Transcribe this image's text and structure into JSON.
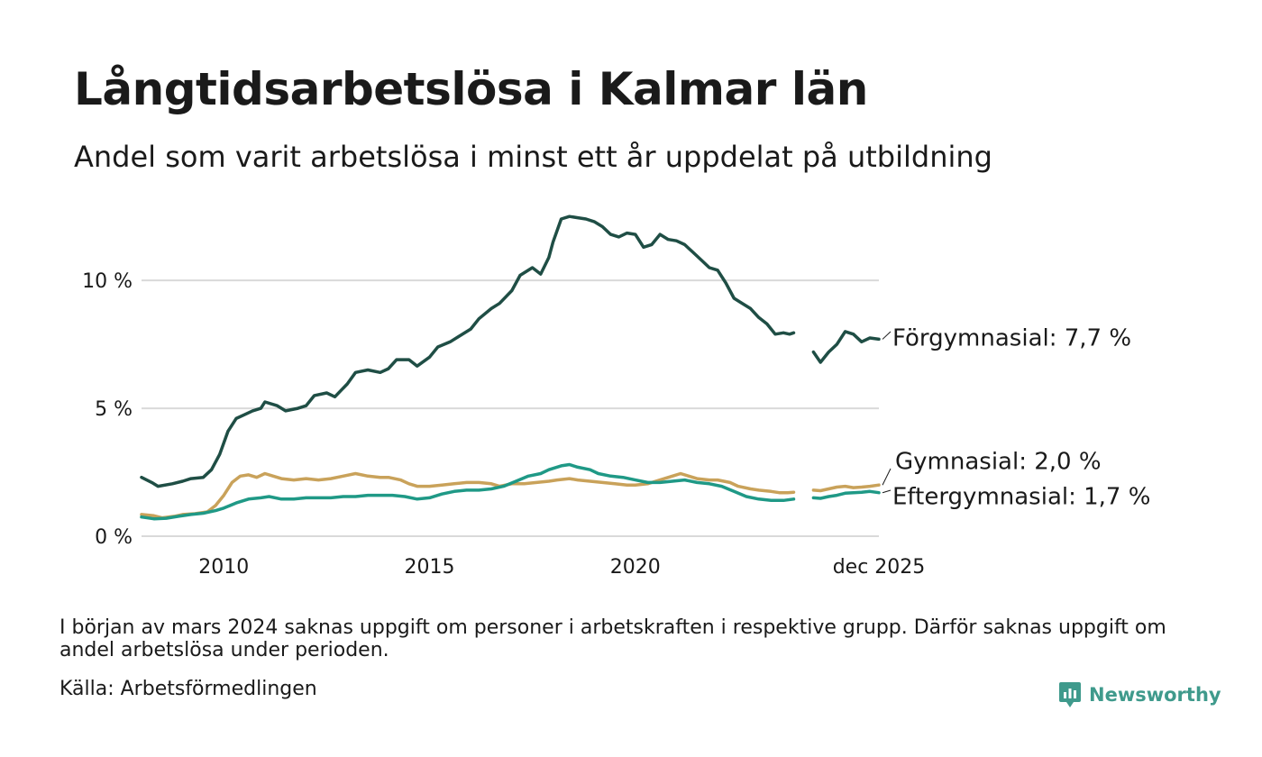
{
  "title": "Långtidsarbetslösa i Kalmar län",
  "subtitle": "Andel som varit arbetslösa i minst ett år uppdelat på utbildning",
  "note": "I början av mars 2024 saknas uppgift om personer i arbetskraften i respektive grupp. Därför saknas uppgift om andel arbetslösa under perioden.",
  "source": "Källa: Arbetsförmedlingen",
  "brand": {
    "name": "Newsworthy",
    "icon": "newsworthy-logo-icon"
  },
  "colors": {
    "forgymnasial": "#1f4e45",
    "gymnasial": "#c9a25a",
    "eftergymnasial": "#1f9986",
    "grid": "#d9d9d9"
  },
  "chart_data": {
    "type": "line",
    "xlim": [
      2008.0,
      2025.92
    ],
    "ylim": [
      0,
      13
    ],
    "grid": true,
    "xticks": [
      {
        "value": 2010,
        "label": "2010"
      },
      {
        "value": 2015,
        "label": "2015"
      },
      {
        "value": 2020,
        "label": "2020"
      },
      {
        "value": 2025.92,
        "label": "dec 2025"
      }
    ],
    "yticks": [
      {
        "value": 0,
        "label": "0 %"
      },
      {
        "value": 5,
        "label": "5 %"
      },
      {
        "value": 10,
        "label": "10 %"
      }
    ],
    "gap": [
      2024.0,
      2024.33
    ],
    "series": [
      {
        "name": "Förgymnasial",
        "label": "Förgymnasial: 7,7 %",
        "last_value": 7.7,
        "color_key": "forgymnasial",
        "points": [
          [
            2008.0,
            2.3
          ],
          [
            2008.25,
            2.1
          ],
          [
            2008.4,
            1.95
          ],
          [
            2008.75,
            2.05
          ],
          [
            2009.0,
            2.15
          ],
          [
            2009.2,
            2.25
          ],
          [
            2009.5,
            2.3
          ],
          [
            2009.7,
            2.6
          ],
          [
            2009.9,
            3.2
          ],
          [
            2010.1,
            4.1
          ],
          [
            2010.3,
            4.6
          ],
          [
            2010.5,
            4.75
          ],
          [
            2010.7,
            4.9
          ],
          [
            2010.9,
            5.0
          ],
          [
            2011.0,
            5.25
          ],
          [
            2011.3,
            5.1
          ],
          [
            2011.5,
            4.9
          ],
          [
            2011.8,
            5.0
          ],
          [
            2012.0,
            5.1
          ],
          [
            2012.2,
            5.5
          ],
          [
            2012.5,
            5.6
          ],
          [
            2012.7,
            5.45
          ],
          [
            2013.0,
            5.95
          ],
          [
            2013.2,
            6.4
          ],
          [
            2013.5,
            6.5
          ],
          [
            2013.8,
            6.4
          ],
          [
            2014.0,
            6.55
          ],
          [
            2014.2,
            6.9
          ],
          [
            2014.5,
            6.9
          ],
          [
            2014.7,
            6.65
          ],
          [
            2015.0,
            7.0
          ],
          [
            2015.2,
            7.4
          ],
          [
            2015.5,
            7.6
          ],
          [
            2015.7,
            7.8
          ],
          [
            2016.0,
            8.1
          ],
          [
            2016.2,
            8.5
          ],
          [
            2016.5,
            8.9
          ],
          [
            2016.7,
            9.1
          ],
          [
            2017.0,
            9.6
          ],
          [
            2017.2,
            10.2
          ],
          [
            2017.5,
            10.5
          ],
          [
            2017.7,
            10.25
          ],
          [
            2017.9,
            10.9
          ],
          [
            2018.0,
            11.5
          ],
          [
            2018.2,
            12.4
          ],
          [
            2018.4,
            12.5
          ],
          [
            2018.6,
            12.45
          ],
          [
            2018.8,
            12.4
          ],
          [
            2019.0,
            12.3
          ],
          [
            2019.2,
            12.1
          ],
          [
            2019.4,
            11.8
          ],
          [
            2019.6,
            11.7
          ],
          [
            2019.8,
            11.85
          ],
          [
            2020.0,
            11.8
          ],
          [
            2020.2,
            11.3
          ],
          [
            2020.4,
            11.4
          ],
          [
            2020.6,
            11.8
          ],
          [
            2020.8,
            11.6
          ],
          [
            2021.0,
            11.55
          ],
          [
            2021.2,
            11.4
          ],
          [
            2021.4,
            11.1
          ],
          [
            2021.6,
            10.8
          ],
          [
            2021.8,
            10.5
          ],
          [
            2022.0,
            10.4
          ],
          [
            2022.2,
            9.9
          ],
          [
            2022.4,
            9.3
          ],
          [
            2022.6,
            9.1
          ],
          [
            2022.8,
            8.9
          ],
          [
            2023.0,
            8.55
          ],
          [
            2023.2,
            8.3
          ],
          [
            2023.4,
            7.9
          ],
          [
            2023.6,
            7.95
          ],
          [
            2023.75,
            7.9
          ],
          [
            2023.85,
            7.95
          ],
          [
            2024.33,
            7.2
          ],
          [
            2024.5,
            6.8
          ],
          [
            2024.7,
            7.2
          ],
          [
            2024.9,
            7.5
          ],
          [
            2025.1,
            8.0
          ],
          [
            2025.3,
            7.9
          ],
          [
            2025.5,
            7.6
          ],
          [
            2025.7,
            7.75
          ],
          [
            2025.92,
            7.7
          ]
        ]
      },
      {
        "name": "Gymnasial",
        "label": "Gymnasial: 2,0 %",
        "last_value": 2.0,
        "color_key": "gymnasial",
        "points": [
          [
            2008.0,
            0.85
          ],
          [
            2008.3,
            0.8
          ],
          [
            2008.5,
            0.72
          ],
          [
            2008.8,
            0.78
          ],
          [
            2009.0,
            0.85
          ],
          [
            2009.3,
            0.88
          ],
          [
            2009.6,
            0.95
          ],
          [
            2009.8,
            1.2
          ],
          [
            2010.0,
            1.6
          ],
          [
            2010.2,
            2.1
          ],
          [
            2010.4,
            2.35
          ],
          [
            2010.6,
            2.4
          ],
          [
            2010.8,
            2.3
          ],
          [
            2011.0,
            2.45
          ],
          [
            2011.2,
            2.35
          ],
          [
            2011.4,
            2.25
          ],
          [
            2011.7,
            2.2
          ],
          [
            2012.0,
            2.25
          ],
          [
            2012.3,
            2.2
          ],
          [
            2012.6,
            2.25
          ],
          [
            2012.9,
            2.35
          ],
          [
            2013.2,
            2.45
          ],
          [
            2013.5,
            2.35
          ],
          [
            2013.8,
            2.3
          ],
          [
            2014.0,
            2.3
          ],
          [
            2014.3,
            2.2
          ],
          [
            2014.5,
            2.05
          ],
          [
            2014.7,
            1.95
          ],
          [
            2015.0,
            1.95
          ],
          [
            2015.3,
            2.0
          ],
          [
            2015.6,
            2.05
          ],
          [
            2015.9,
            2.1
          ],
          [
            2016.2,
            2.1
          ],
          [
            2016.5,
            2.05
          ],
          [
            2016.7,
            1.95
          ],
          [
            2017.0,
            2.05
          ],
          [
            2017.3,
            2.05
          ],
          [
            2017.6,
            2.1
          ],
          [
            2017.9,
            2.15
          ],
          [
            2018.1,
            2.2
          ],
          [
            2018.4,
            2.25
          ],
          [
            2018.6,
            2.2
          ],
          [
            2018.9,
            2.15
          ],
          [
            2019.2,
            2.1
          ],
          [
            2019.5,
            2.05
          ],
          [
            2019.8,
            2.0
          ],
          [
            2020.0,
            2.0
          ],
          [
            2020.3,
            2.05
          ],
          [
            2020.6,
            2.2
          ],
          [
            2020.9,
            2.35
          ],
          [
            2021.1,
            2.45
          ],
          [
            2021.3,
            2.35
          ],
          [
            2021.5,
            2.25
          ],
          [
            2021.8,
            2.2
          ],
          [
            2022.0,
            2.2
          ],
          [
            2022.3,
            2.1
          ],
          [
            2022.5,
            1.95
          ],
          [
            2022.8,
            1.85
          ],
          [
            2023.0,
            1.8
          ],
          [
            2023.3,
            1.75
          ],
          [
            2023.5,
            1.7
          ],
          [
            2023.7,
            1.7
          ],
          [
            2023.85,
            1.72
          ],
          [
            2024.33,
            1.8
          ],
          [
            2024.5,
            1.78
          ],
          [
            2024.7,
            1.85
          ],
          [
            2024.9,
            1.92
          ],
          [
            2025.1,
            1.95
          ],
          [
            2025.3,
            1.9
          ],
          [
            2025.5,
            1.92
          ],
          [
            2025.7,
            1.95
          ],
          [
            2025.92,
            2.0
          ]
        ]
      },
      {
        "name": "Eftergymnasial",
        "label": "Eftergymnasial: 1,7 %",
        "last_value": 1.7,
        "color_key": "eftergymnasial",
        "points": [
          [
            2008.0,
            0.75
          ],
          [
            2008.3,
            0.68
          ],
          [
            2008.6,
            0.7
          ],
          [
            2008.9,
            0.78
          ],
          [
            2009.2,
            0.85
          ],
          [
            2009.5,
            0.9
          ],
          [
            2009.8,
            1.0
          ],
          [
            2010.0,
            1.1
          ],
          [
            2010.3,
            1.3
          ],
          [
            2010.6,
            1.45
          ],
          [
            2010.9,
            1.5
          ],
          [
            2011.1,
            1.55
          ],
          [
            2011.4,
            1.45
          ],
          [
            2011.7,
            1.45
          ],
          [
            2012.0,
            1.5
          ],
          [
            2012.3,
            1.5
          ],
          [
            2012.6,
            1.5
          ],
          [
            2012.9,
            1.55
          ],
          [
            2013.2,
            1.55
          ],
          [
            2013.5,
            1.6
          ],
          [
            2013.8,
            1.6
          ],
          [
            2014.1,
            1.6
          ],
          [
            2014.4,
            1.55
          ],
          [
            2014.7,
            1.45
          ],
          [
            2015.0,
            1.5
          ],
          [
            2015.3,
            1.65
          ],
          [
            2015.6,
            1.75
          ],
          [
            2015.9,
            1.8
          ],
          [
            2016.2,
            1.8
          ],
          [
            2016.5,
            1.85
          ],
          [
            2016.8,
            1.95
          ],
          [
            2017.1,
            2.15
          ],
          [
            2017.4,
            2.35
          ],
          [
            2017.7,
            2.45
          ],
          [
            2017.9,
            2.6
          ],
          [
            2018.2,
            2.75
          ],
          [
            2018.4,
            2.8
          ],
          [
            2018.6,
            2.7
          ],
          [
            2018.9,
            2.6
          ],
          [
            2019.1,
            2.45
          ],
          [
            2019.4,
            2.35
          ],
          [
            2019.7,
            2.3
          ],
          [
            2020.0,
            2.2
          ],
          [
            2020.3,
            2.1
          ],
          [
            2020.6,
            2.1
          ],
          [
            2020.9,
            2.15
          ],
          [
            2021.2,
            2.2
          ],
          [
            2021.5,
            2.1
          ],
          [
            2021.8,
            2.05
          ],
          [
            2022.1,
            1.95
          ],
          [
            2022.4,
            1.75
          ],
          [
            2022.7,
            1.55
          ],
          [
            2023.0,
            1.45
          ],
          [
            2023.3,
            1.4
          ],
          [
            2023.6,
            1.4
          ],
          [
            2023.85,
            1.45
          ],
          [
            2024.33,
            1.5
          ],
          [
            2024.5,
            1.48
          ],
          [
            2024.7,
            1.55
          ],
          [
            2024.9,
            1.6
          ],
          [
            2025.1,
            1.68
          ],
          [
            2025.3,
            1.7
          ],
          [
            2025.5,
            1.72
          ],
          [
            2025.7,
            1.75
          ],
          [
            2025.92,
            1.7
          ]
        ]
      }
    ]
  }
}
